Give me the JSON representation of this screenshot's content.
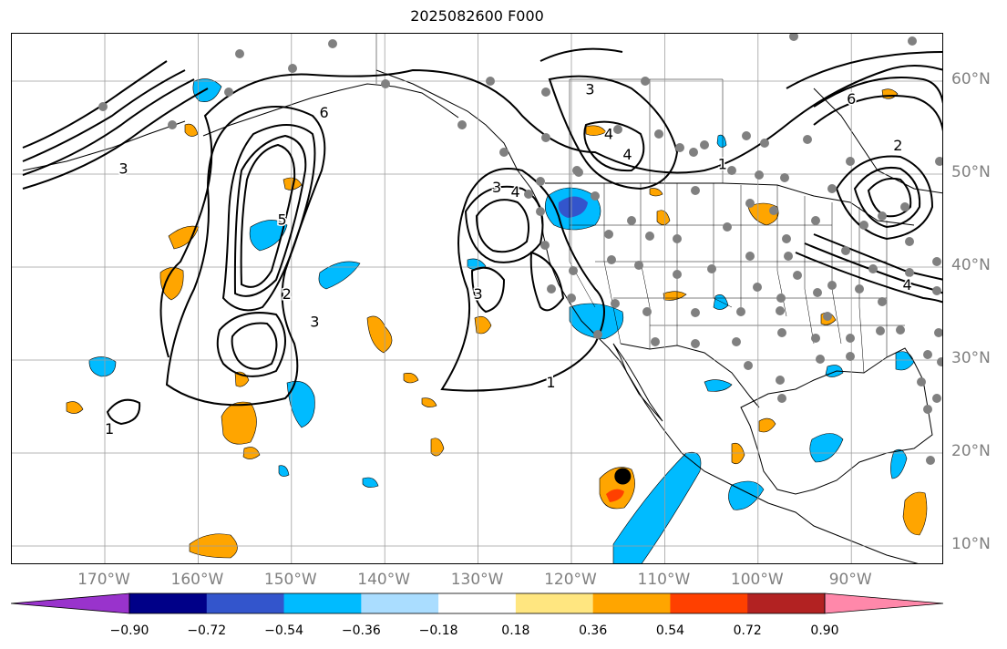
{
  "title": "2025082600 F000",
  "map": {
    "lon_labels": [
      {
        "deg": -170,
        "label": "170°W"
      },
      {
        "deg": -160,
        "label": "160°W"
      },
      {
        "deg": -150,
        "label": "150°W"
      },
      {
        "deg": -140,
        "label": "140°W"
      },
      {
        "deg": -130,
        "label": "130°W"
      },
      {
        "deg": -120,
        "label": "120°W"
      },
      {
        "deg": -110,
        "label": "110°W"
      },
      {
        "deg": -100,
        "label": "100°W"
      },
      {
        "deg": -90,
        "label": "90°W"
      }
    ],
    "lat_labels": [
      {
        "deg": 60,
        "label": "60°N"
      },
      {
        "deg": 50,
        "label": "50°N"
      },
      {
        "deg": 40,
        "label": "40°N"
      },
      {
        "deg": 30,
        "label": "30°N"
      },
      {
        "deg": 20,
        "label": "20°N"
      },
      {
        "deg": 10,
        "label": "10°N"
      }
    ],
    "contour_labels": [
      {
        "text": "1",
        "lon": -122.2,
        "lat": 27.5
      },
      {
        "text": "1",
        "lon": -169.5,
        "lat": 22.5
      },
      {
        "text": "1",
        "lon": -103.8,
        "lat": 51.0
      },
      {
        "text": "2",
        "lon": -150.5,
        "lat": 37.0
      },
      {
        "text": "2",
        "lon": -85.0,
        "lat": 53.0
      },
      {
        "text": "3",
        "lon": -147.5,
        "lat": 34.0
      },
      {
        "text": "3",
        "lon": -130.0,
        "lat": 37.0
      },
      {
        "text": "3",
        "lon": -128.0,
        "lat": 48.5
      },
      {
        "text": "3",
        "lon": -118.0,
        "lat": 59.0
      },
      {
        "text": "3",
        "lon": -168.0,
        "lat": 50.5
      },
      {
        "text": "4",
        "lon": -126.0,
        "lat": 48.0
      },
      {
        "text": "4",
        "lon": -116.0,
        "lat": 54.2
      },
      {
        "text": "4",
        "lon": -114.0,
        "lat": 52.0
      },
      {
        "text": "4",
        "lon": -84.0,
        "lat": 38.0
      },
      {
        "text": "5",
        "lon": -151.0,
        "lat": 45.0
      },
      {
        "text": "6",
        "lon": -146.5,
        "lat": 56.5
      },
      {
        "text": "6",
        "lon": -90.0,
        "lat": 58.0
      }
    ],
    "tropical_cyclone_marker": {
      "lon": -114.5,
      "lat": 17.5
    }
  },
  "colorbar": {
    "tick_labels": [
      "−0.90",
      "−0.72",
      "−0.54",
      "−0.36",
      "−0.18",
      "0.18",
      "0.36",
      "0.54",
      "0.72",
      "0.90"
    ],
    "colors": [
      "#9933cc",
      "#000088",
      "#3355cc",
      "#00bbff",
      "#aaddff",
      "#ffffff",
      "#ffe680",
      "#ffa500",
      "#ff4000",
      "#b22222",
      "#ff88aa"
    ]
  }
}
